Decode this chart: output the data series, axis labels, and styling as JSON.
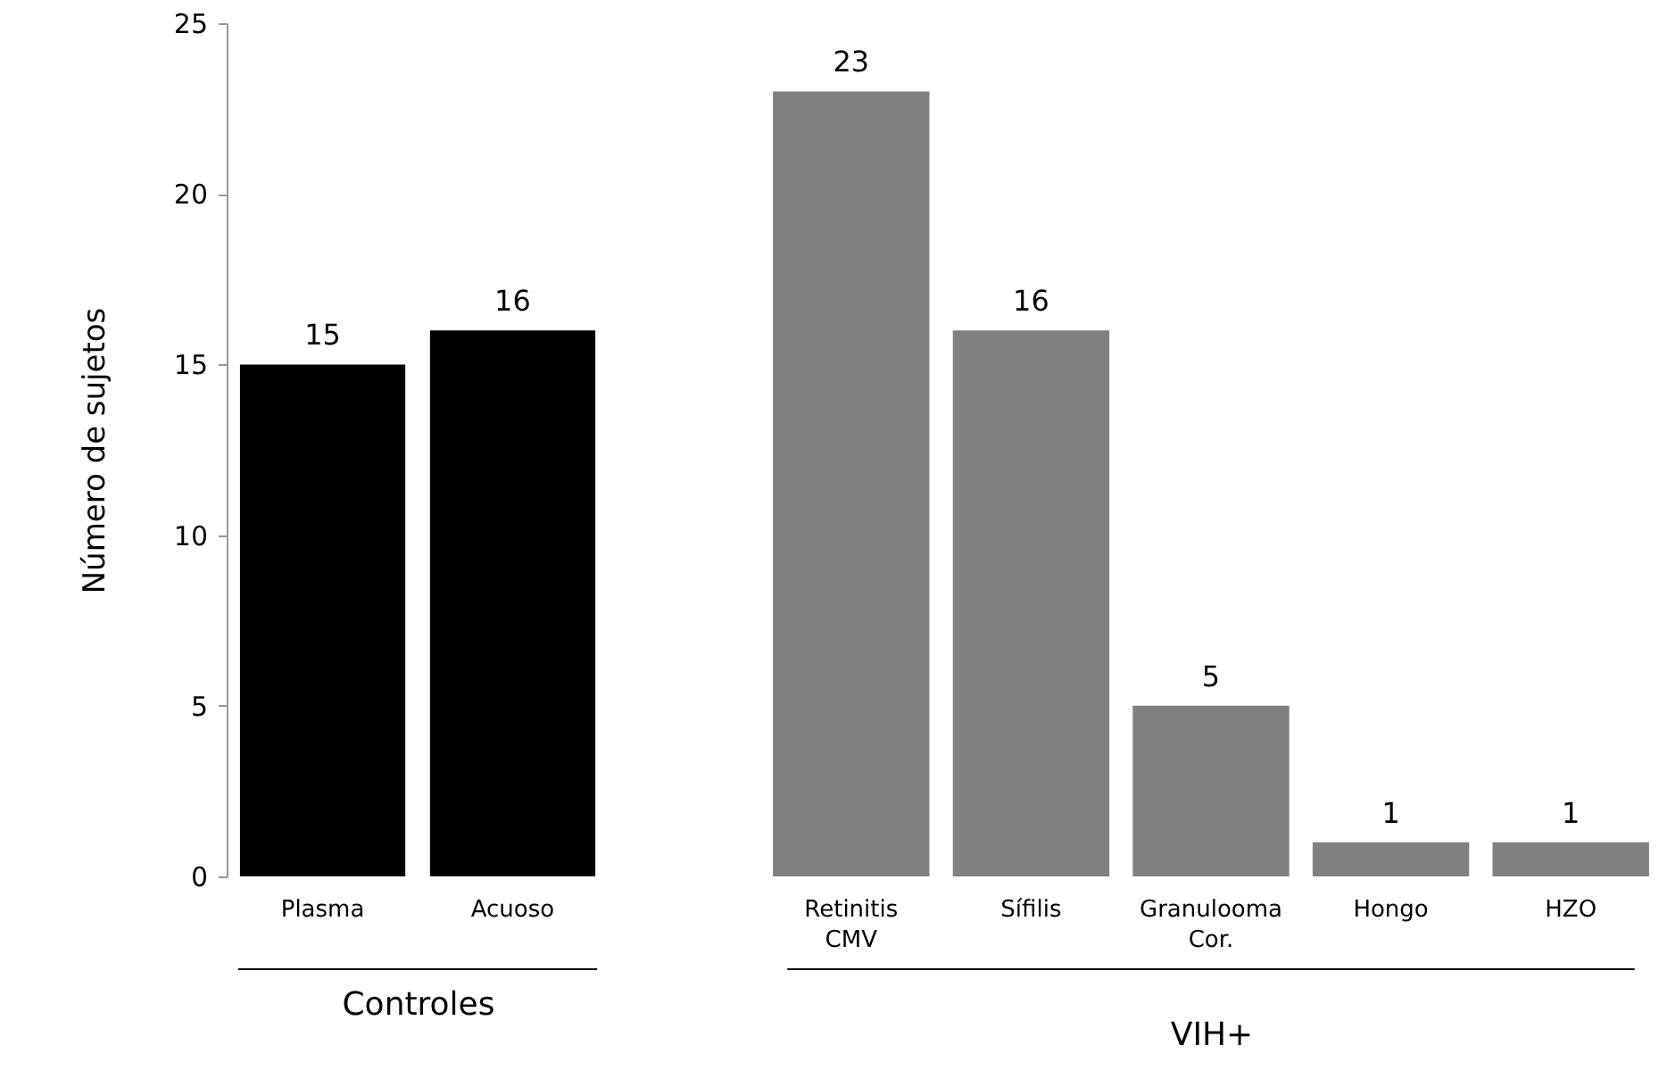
{
  "chart_data": [
    {
      "type": "bar",
      "ylabel": "Número de sujetos",
      "xlabel": "Controles",
      "categories": [
        "Plasma",
        "Acuoso"
      ],
      "values": [
        15,
        16
      ],
      "color": "#000000",
      "ylim": [
        0,
        25
      ],
      "yticks": [
        0,
        5,
        10,
        15,
        20,
        25
      ],
      "data_labels": true
    },
    {
      "type": "bar",
      "xlabel": "VIH+",
      "categories": [
        "Retinitis\nCMV",
        "Sífilis",
        "Granulooma\nCor.",
        "Hongo",
        "HZO"
      ],
      "values": [
        23,
        16,
        5,
        1,
        1
      ],
      "color": "#808080",
      "ylim": [
        0,
        25
      ],
      "data_labels": true,
      "tick_labels": "x"
    }
  ]
}
